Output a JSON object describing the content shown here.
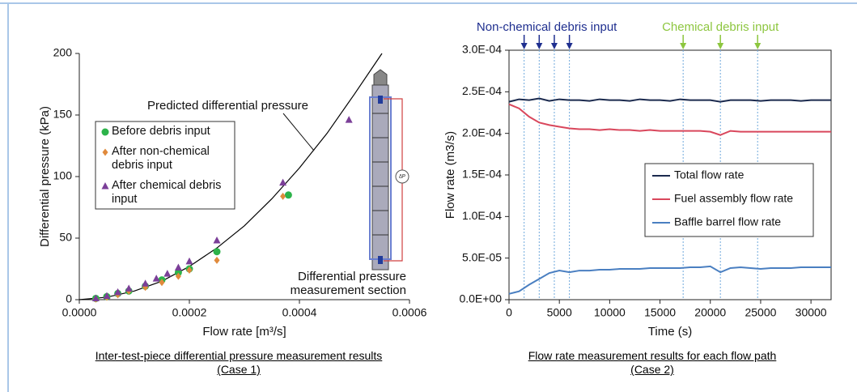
{
  "chart_data": [
    {
      "type": "scatter",
      "xlabel": "Flow rate [m³/s]",
      "ylabel": "Differential pressure (kPa)",
      "caption": [
        "Inter-test-piece differential pressure measurement results",
        "(Case 1)"
      ],
      "xlim": [
        0,
        0.0006
      ],
      "xticks": [
        {
          "value": 0,
          "label": "0.0000"
        },
        {
          "value": 0.0002,
          "label": "0.0002"
        },
        {
          "value": 0.0004,
          "label": "0.0004"
        },
        {
          "value": 0.0006,
          "label": "0.0006"
        }
      ],
      "ylim": [
        0,
        200
      ],
      "yticks": [
        0,
        50,
        100,
        150,
        200
      ],
      "series": [
        {
          "name": "Before debris input",
          "color": "#2db34a",
          "marker": "circle",
          "x": [
            3e-05,
            5e-05,
            7e-05,
            9e-05,
            0.00012,
            0.00015,
            0.00018,
            0.0002,
            0.00025,
            0.00038
          ],
          "values": [
            1,
            2.5,
            5,
            7,
            11,
            16,
            22,
            25,
            39,
            85
          ]
        },
        {
          "name": "After non-chemical debris input",
          "color": "#e08a3c",
          "marker": "diamond",
          "x": [
            3e-05,
            5e-05,
            7e-05,
            9e-05,
            0.00012,
            0.00015,
            0.00018,
            0.0002,
            0.00025,
            0.00037
          ],
          "values": [
            0.5,
            2,
            4,
            7,
            10,
            14,
            19,
            24,
            32,
            84
          ]
        },
        {
          "name": "After chemical debris input",
          "color": "#7b3f98",
          "marker": "triangle",
          "x": [
            3e-05,
            5e-05,
            7e-05,
            9e-05,
            0.00012,
            0.00014,
            0.00016,
            0.00018,
            0.0002,
            0.00025,
            0.00037,
            0.00049
          ],
          "values": [
            1,
            3,
            6,
            9,
            13,
            17,
            21,
            26,
            31,
            48,
            95,
            146
          ]
        }
      ],
      "curve": {
        "color": "#000000",
        "x": [
          0,
          5e-05,
          0.0001,
          0.00015,
          0.0002,
          0.00025,
          0.0003,
          0.00035,
          0.0004,
          0.00045,
          0.0005,
          0.00055
        ],
        "values": [
          0,
          2,
          7,
          15,
          27,
          42,
          60,
          82,
          107,
          135,
          167,
          200
        ]
      },
      "annotations": [
        "Predicted differential pressure",
        "Differential pressure measurement section",
        "ΔP"
      ]
    },
    {
      "type": "line",
      "xlabel": "Time (s)",
      "ylabel": "Flow rate (m3/s)",
      "caption": [
        "Flow rate measurement results for each flow path",
        "(Case 2)"
      ],
      "xlim": [
        0,
        32000
      ],
      "xticks": [
        0,
        5000,
        10000,
        15000,
        20000,
        25000,
        30000
      ],
      "ylim": [
        0,
        0.0003
      ],
      "yticks": [
        {
          "value": 0,
          "label": "0.0E+00"
        },
        {
          "value": 5e-05,
          "label": "5.0E-05"
        },
        {
          "value": 0.0001,
          "label": "1.0E-04"
        },
        {
          "value": 0.00015,
          "label": "1.5E-04"
        },
        {
          "value": 0.0002,
          "label": "2.0E-04"
        },
        {
          "value": 0.00025,
          "label": "2.5E-04"
        },
        {
          "value": 0.0003,
          "label": "3.0E-04"
        }
      ],
      "legend": "center right",
      "x": [
        0,
        1000,
        2000,
        3000,
        4000,
        5000,
        6000,
        7000,
        8000,
        9000,
        10000,
        11000,
        12000,
        13000,
        14000,
        15000,
        16000,
        17000,
        18000,
        19000,
        20000,
        21000,
        22000,
        23000,
        24000,
        25000,
        26000,
        27000,
        28000,
        29000,
        30000,
        31000,
        32000
      ],
      "series": [
        {
          "name": "Total flow rate",
          "color": "#1b2a4e",
          "values": [
            0.000238,
            0.000241,
            0.00024,
            0.000242,
            0.000239,
            0.000241,
            0.00024,
            0.00024,
            0.000239,
            0.000241,
            0.00024,
            0.00024,
            0.000239,
            0.000241,
            0.00024,
            0.00024,
            0.000239,
            0.000241,
            0.00024,
            0.00024,
            0.00024,
            0.000238,
            0.00024,
            0.00024,
            0.00024,
            0.000239,
            0.00024,
            0.00024,
            0.00024,
            0.000239,
            0.00024,
            0.00024,
            0.00024
          ]
        },
        {
          "name": "Fuel assembly flow rate",
          "color": "#d9475c",
          "values": [
            0.000235,
            0.00023,
            0.00022,
            0.000213,
            0.00021,
            0.000208,
            0.000206,
            0.000205,
            0.000205,
            0.000204,
            0.000205,
            0.000204,
            0.000204,
            0.000203,
            0.000204,
            0.000203,
            0.000203,
            0.000203,
            0.000203,
            0.000203,
            0.000202,
            0.000198,
            0.000203,
            0.000202,
            0.000202,
            0.000202,
            0.000202,
            0.000202,
            0.000202,
            0.000202,
            0.000202,
            0.000202,
            0.000202
          ]
        },
        {
          "name": "Baffle barrel flow rate",
          "color": "#4a7fc1",
          "values": [
            7e-06,
            1e-05,
            1.8e-05,
            2.5e-05,
            3.2e-05,
            3.5e-05,
            3.3e-05,
            3.5e-05,
            3.5e-05,
            3.6e-05,
            3.6e-05,
            3.7e-05,
            3.7e-05,
            3.7e-05,
            3.8e-05,
            3.8e-05,
            3.8e-05,
            3.8e-05,
            3.9e-05,
            3.9e-05,
            4e-05,
            3.3e-05,
            3.8e-05,
            3.9e-05,
            3.8e-05,
            3.7e-05,
            3.8e-05,
            3.8e-05,
            3.8e-05,
            3.9e-05,
            3.9e-05,
            3.9e-05,
            3.9e-05
          ]
        }
      ],
      "events": [
        {
          "label": "Non-chemical debris input",
          "color": "#1f2f8f",
          "x": [
            1500,
            3000,
            4500,
            6000
          ]
        },
        {
          "label": "Chemical debris input",
          "color": "#8dc63f",
          "x": [
            17300,
            21000,
            24700
          ]
        }
      ]
    }
  ]
}
